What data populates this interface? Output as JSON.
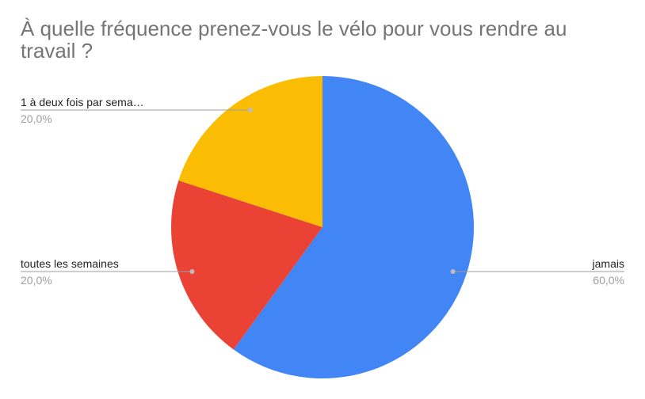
{
  "chart_data": {
    "type": "pie",
    "title": "À quelle fréquence prenez-vous le vélo pour vous rendre au travail ?",
    "slices": [
      {
        "label": "jamais",
        "display_label": "jamais",
        "value": 60.0,
        "percent_label": "60,0%",
        "color": "#4285F4"
      },
      {
        "label": "toutes les semaines",
        "display_label": "toutes les semaines",
        "value": 20.0,
        "percent_label": "20,0%",
        "color": "#EA4335"
      },
      {
        "label": "1 à deux fois par semaine",
        "display_label": "1 à deux fois par sema…",
        "value": 20.0,
        "percent_label": "20,0%",
        "color": "#FBBC04"
      }
    ],
    "start_angle": "12 o'clock",
    "direction": "clockwise",
    "legend": "labels with leader lines"
  }
}
